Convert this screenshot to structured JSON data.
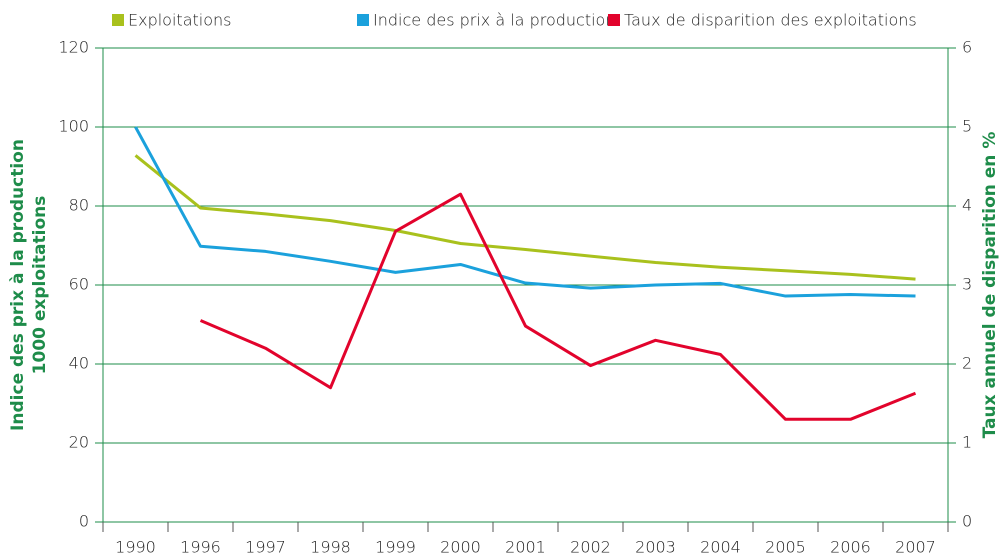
{
  "chart_data": {
    "type": "line",
    "categories": [
      "1990",
      "1996",
      "1997",
      "1998",
      "1999",
      "2000",
      "2001",
      "2002",
      "2003",
      "2004",
      "2005",
      "2006",
      "2007"
    ],
    "series": [
      {
        "name": "Exploitations",
        "color": "#a9c11d",
        "values": [
          92.8,
          79.5,
          78,
          76.3,
          73.8,
          70.5,
          69,
          67.3,
          65.7,
          64.5,
          63.6,
          62.7,
          61.5
        ]
      },
      {
        "name": "Indice des prix à la production",
        "color": "#1ba1dc",
        "values": [
          100,
          69.8,
          68.5,
          66,
          63.2,
          65.2,
          60.5,
          59.2,
          60,
          60.4,
          57.2,
          57.6,
          57.2
        ]
      },
      {
        "name": "Taux de disparition des exploitations",
        "color": "#e2032c",
        "axis": "y2",
        "values": [
          null,
          2.55,
          2.2,
          1.7,
          3.68,
          4.15,
          2.48,
          1.98,
          2.3,
          2.12,
          1.3,
          1.3,
          1.63
        ]
      }
    ],
    "ylabel_lines": [
      "Indice des prix à la production",
      "1000 exploitations"
    ],
    "y2label": "Taux annuel de disparition en %",
    "ylim": [
      0,
      120
    ],
    "yticks": [
      0,
      20,
      40,
      60,
      80,
      100,
      120
    ],
    "y2lim": [
      0,
      6
    ],
    "y2ticks": [
      0,
      1,
      2,
      3,
      4,
      5,
      6
    ],
    "grid": true,
    "axis_color": "#1e8c4a"
  }
}
